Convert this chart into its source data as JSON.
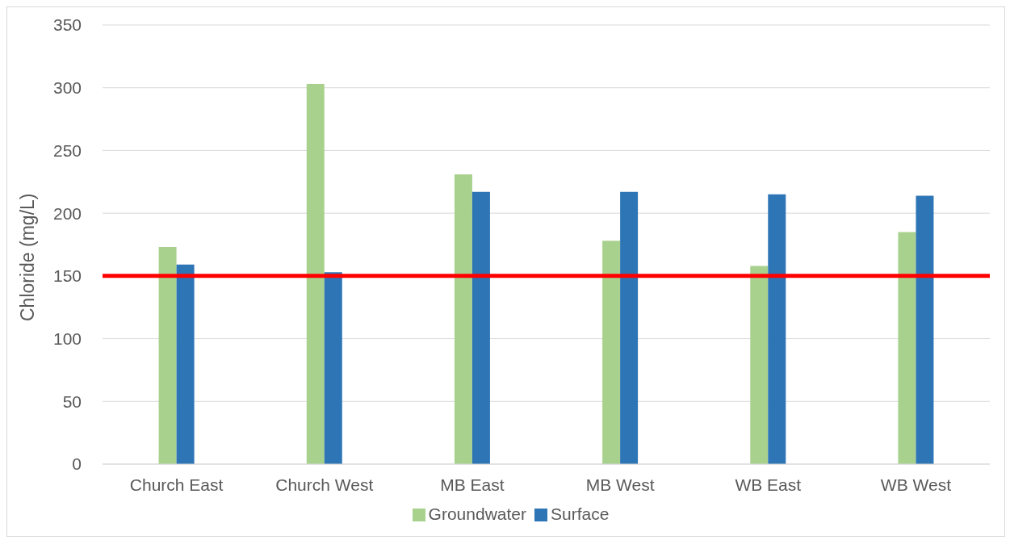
{
  "chart_data": {
    "type": "bar",
    "ylabel": "Chloride (mg/L)",
    "categories": [
      "Church East",
      "Church West",
      "MB East",
      "MB West",
      "WB East",
      "WB West"
    ],
    "series": [
      {
        "name": "Groundwater",
        "color": "#a9d18e",
        "values": [
          173,
          303,
          231,
          178,
          158,
          185
        ]
      },
      {
        "name": "Surface",
        "color": "#2e75b6",
        "values": [
          159,
          153,
          217,
          217,
          215,
          214
        ]
      }
    ],
    "ylim": [
      0,
      350
    ],
    "yticks": [
      0,
      50,
      100,
      150,
      200,
      250,
      300,
      350
    ],
    "grid": "y",
    "legend": "bottom",
    "ref_lines": [
      {
        "axis": "y",
        "value": 150,
        "color": "#ff0000"
      }
    ]
  }
}
